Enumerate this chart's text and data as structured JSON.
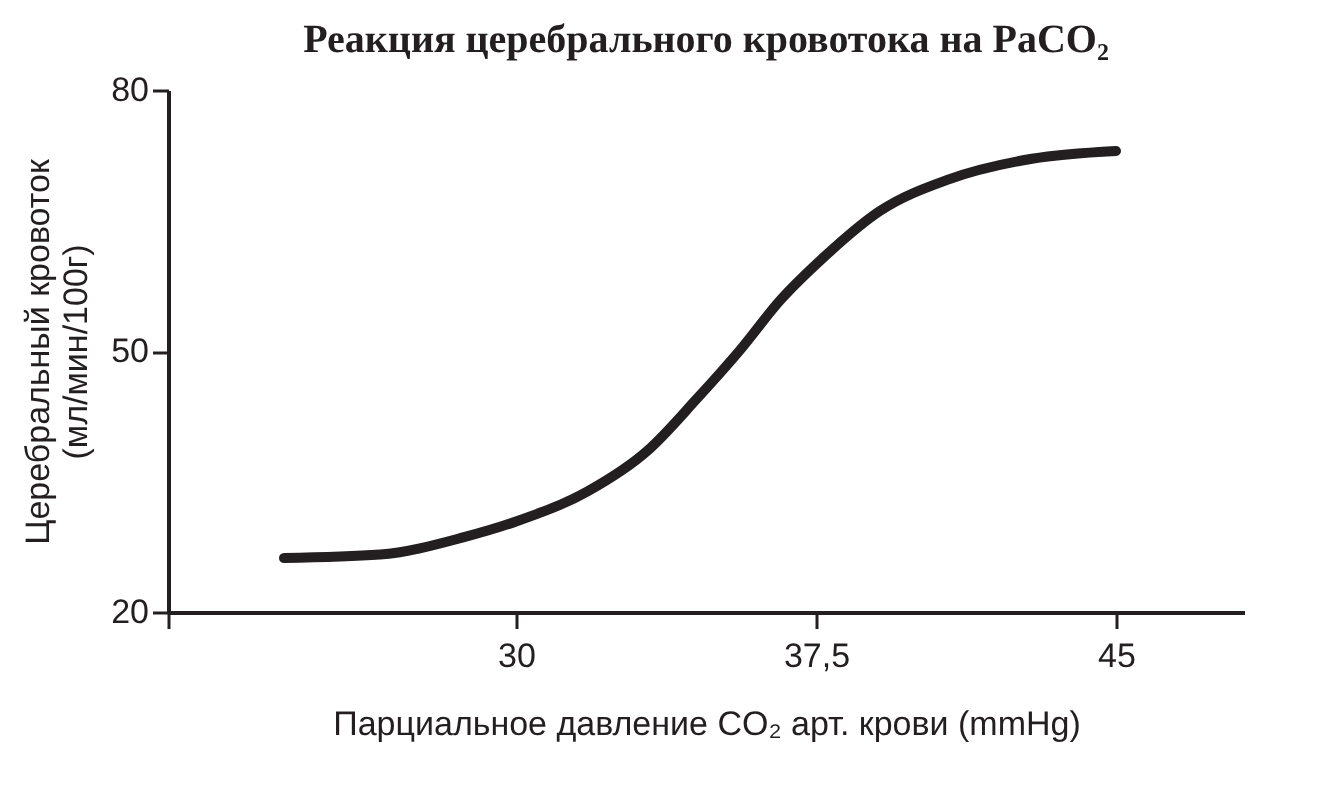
{
  "chart_data": {
    "type": "line",
    "title": "Реакция церебрального кровотока на PaCO₂",
    "xlabel": "Парциальное давление CO₂ арт. крови (mmHg)",
    "ylabel": "Церебральный кровоток\n(мл/мин/100г)",
    "x": [
      24.2,
      26.6,
      28.7,
      30,
      31.8,
      33.3,
      34.5,
      35.6,
      36.6,
      37.7,
      39.1,
      40.8,
      42.9,
      45.0
    ],
    "series": [
      {
        "color": "#231f20",
        "values": [
          26.2,
          26.6,
          28.6,
          30.4,
          33.9,
          38.6,
          44.4,
          50.1,
          55.8,
          60.8,
          66.1,
          69.7,
          72.1,
          73.0
        ]
      }
    ],
    "xlim": [
      21.3,
      48.2
    ],
    "xticks": [
      {
        "value": 21.3,
        "label": null
      },
      30,
      {
        "value": 37.5,
        "label": "37,5"
      },
      45
    ],
    "ylim": [
      20,
      80
    ],
    "yticks": [
      20,
      50,
      80
    ],
    "grid": false,
    "marker": "none",
    "line_style": "solid"
  }
}
